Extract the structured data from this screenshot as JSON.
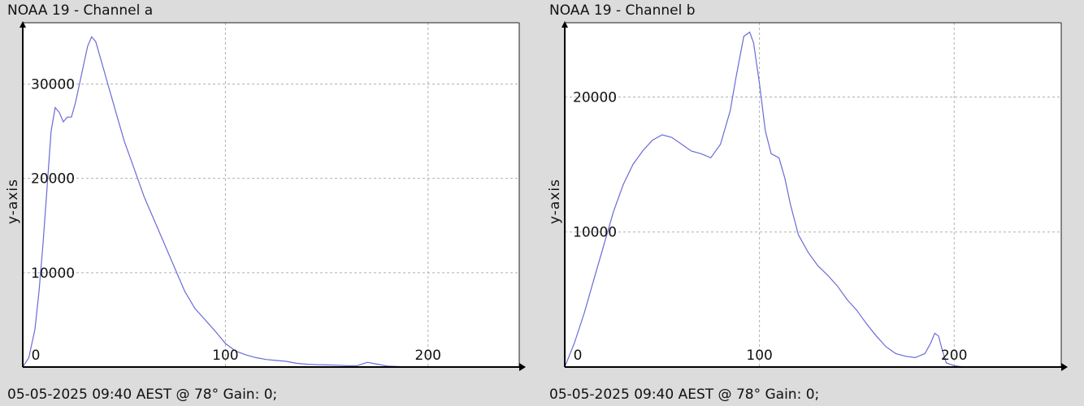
{
  "chart_data": [
    {
      "type": "line",
      "title": "NOAA 19 - Channel a",
      "ylabel": "y-axis",
      "footer": "05-05-2025 09:40 AEST @ 78° Gain: 0;",
      "xlim": [
        0,
        245
      ],
      "ylim": [
        0,
        36500
      ],
      "x_ticks": [
        0,
        100,
        200
      ],
      "y_ticks": [
        10000,
        20000,
        30000
      ],
      "grid": true,
      "color": "#6b6bd6",
      "series": [
        {
          "x": [
            0,
            3,
            6,
            8,
            10,
            12,
            14,
            16,
            18,
            20,
            22,
            24,
            26,
            28,
            30,
            32,
            34,
            36,
            38,
            40,
            42,
            44,
            46,
            48,
            50,
            55,
            60,
            65,
            70,
            75,
            80,
            85,
            90,
            95,
            100,
            105,
            110,
            115,
            120,
            125,
            130,
            135,
            140,
            145,
            150,
            155,
            160,
            165,
            170,
            175,
            180,
            185,
            190
          ],
          "y": [
            0,
            1000,
            4000,
            8000,
            13000,
            19000,
            25000,
            27500,
            27000,
            26000,
            26500,
            26500,
            28000,
            30000,
            32000,
            34000,
            35000,
            34500,
            33000,
            31500,
            30000,
            28500,
            27000,
            25500,
            24000,
            21000,
            18000,
            15500,
            13000,
            10500,
            8000,
            6200,
            5000,
            3800,
            2500,
            1700,
            1300,
            1000,
            800,
            700,
            600,
            400,
            300,
            250,
            220,
            200,
            150,
            150,
            500,
            300,
            100,
            50,
            0
          ]
        }
      ]
    },
    {
      "type": "line",
      "title": "NOAA 19 - Channel b",
      "ylabel": "y-axis",
      "footer": "05-05-2025 09:40 AEST @ 78° Gain: 0;",
      "xlim": [
        0,
        255
      ],
      "ylim": [
        0,
        25500
      ],
      "x_ticks": [
        0,
        100,
        200
      ],
      "y_ticks": [
        10000,
        20000
      ],
      "grid": true,
      "color": "#6b6bd6",
      "series": [
        {
          "x": [
            0,
            5,
            10,
            15,
            20,
            25,
            30,
            35,
            40,
            45,
            50,
            55,
            60,
            65,
            70,
            75,
            80,
            85,
            88,
            90,
            92,
            95,
            97,
            100,
            103,
            106,
            110,
            113,
            116,
            120,
            125,
            130,
            135,
            140,
            145,
            150,
            155,
            160,
            165,
            170,
            175,
            180,
            185,
            188,
            190,
            192,
            194,
            196,
            200,
            205
          ],
          "y": [
            0,
            1800,
            4000,
            6500,
            9000,
            11500,
            13500,
            15000,
            16000,
            16800,
            17200,
            17000,
            16500,
            16000,
            15800,
            15500,
            16500,
            19000,
            21500,
            23000,
            24500,
            24800,
            24000,
            21000,
            17500,
            15800,
            15500,
            14000,
            12000,
            9800,
            8500,
            7500,
            6800,
            6000,
            5000,
            4200,
            3200,
            2300,
            1500,
            1000,
            800,
            700,
            1000,
            1800,
            2500,
            2300,
            1200,
            300,
            100,
            0
          ]
        }
      ]
    }
  ]
}
